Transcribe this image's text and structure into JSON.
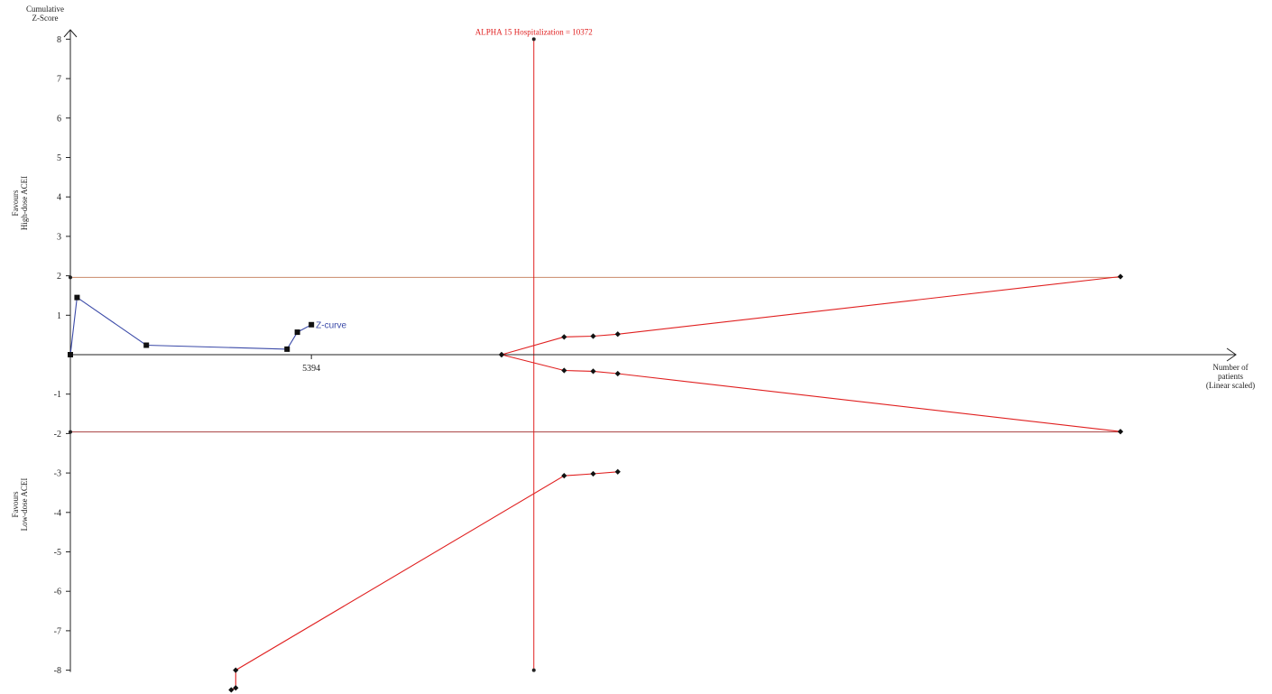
{
  "chart_data": {
    "type": "line",
    "y_axis_title": [
      "Cumulative",
      "Z-Score"
    ],
    "x_axis_title": [
      "Number of",
      "patients",
      "(Linear scaled)"
    ],
    "y_favours_top": [
      "Favours",
      "High-dose ACEI"
    ],
    "y_favours_bottom": [
      "Favours",
      "Low-dose ACEI"
    ],
    "ylim": [
      -8,
      8
    ],
    "y_ticks": [
      {
        "v": 8,
        "label": "8"
      },
      {
        "v": 7,
        "label": "7"
      },
      {
        "v": 6,
        "label": "6"
      },
      {
        "v": 5,
        "label": "5"
      },
      {
        "v": 4,
        "label": "4"
      },
      {
        "v": 3,
        "label": "3"
      },
      {
        "v": 2,
        "label": "2"
      },
      {
        "v": 1,
        "label": "1"
      },
      {
        "v": -1,
        "label": "-1"
      },
      {
        "v": -2,
        "label": "-2"
      },
      {
        "v": -3,
        "label": "-3"
      },
      {
        "v": -4,
        "label": "-4"
      },
      {
        "v": -5,
        "label": "-5"
      },
      {
        "v": -6,
        "label": "-6"
      },
      {
        "v": -7,
        "label": "-7"
      },
      {
        "v": -8,
        "label": "-8"
      }
    ],
    "x_tick_label": {
      "x": 5394,
      "label": "5394"
    },
    "xlim": [
      0,
      23500
    ],
    "conventional_boundaries": [
      1.96,
      -1.96
    ],
    "required_information_size": {
      "x": 10372,
      "label": "ALPHA 15 Hospitalization = 10372",
      "ymin": -8,
      "ymax": 8
    },
    "series": [
      {
        "name": "Z-curve",
        "color": "#3b4aa8",
        "points": [
          {
            "x": 0,
            "y": 0
          },
          {
            "x": 150,
            "y": 1.45
          },
          {
            "x": 1700,
            "y": 0.24
          },
          {
            "x": 4850,
            "y": 0.14
          },
          {
            "x": 5080,
            "y": 0.57
          },
          {
            "x": 5394,
            "y": 0.76
          }
        ]
      },
      {
        "name": "",
        "color": "#e02020",
        "points": [
          {
            "x": 9650,
            "y": 0
          },
          {
            "x": 11050,
            "y": 0.45
          },
          {
            "x": 11700,
            "y": 0.47
          },
          {
            "x": 12250,
            "y": 0.52
          },
          {
            "x": 23500,
            "y": 1.98
          }
        ]
      },
      {
        "name": "",
        "color": "#e02020",
        "points": [
          {
            "x": 9650,
            "y": 0
          },
          {
            "x": 11050,
            "y": -0.4
          },
          {
            "x": 11700,
            "y": -0.42
          },
          {
            "x": 12250,
            "y": -0.48
          },
          {
            "x": 23500,
            "y": -1.95
          }
        ]
      },
      {
        "name": "",
        "color": "#e02020",
        "points": [
          {
            "x": 3600,
            "y": -8.5
          },
          {
            "x": 3700,
            "y": -8.45
          },
          {
            "x": 3700,
            "y": -8.0
          },
          {
            "x": 11050,
            "y": -3.07
          },
          {
            "x": 11700,
            "y": -3.02
          },
          {
            "x": 12250,
            "y": -2.97
          }
        ]
      }
    ]
  }
}
